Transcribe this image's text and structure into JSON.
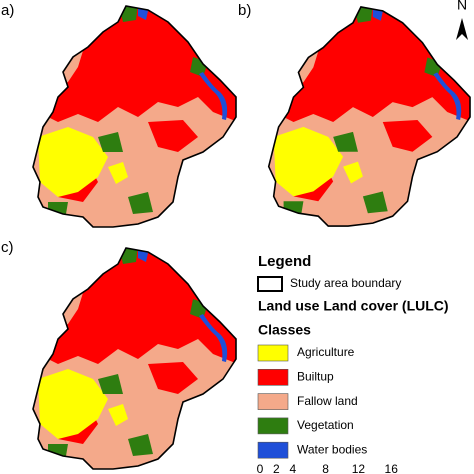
{
  "panels": [
    {
      "label": "a)"
    },
    {
      "label": "b)"
    },
    {
      "label": "c)"
    }
  ],
  "north": "N",
  "legend": {
    "title": "Legend",
    "boundary": "Study area boundary",
    "subtitle": "Land use Land cover (LULC)",
    "classes_title": "Classes",
    "classes": [
      {
        "name": "Agriculture",
        "color": "#ffff00"
      },
      {
        "name": "Builtup",
        "color": "#ff0000"
      },
      {
        "name": "Fallow land",
        "color": "#f4a98a"
      },
      {
        "name": "Vegetation",
        "color": "#2e7d10"
      },
      {
        "name": "Water bodies",
        "color": "#1f4fd8"
      }
    ]
  },
  "scale_bar": {
    "ticks": [
      0,
      2,
      4,
      8,
      12,
      16
    ]
  }
}
